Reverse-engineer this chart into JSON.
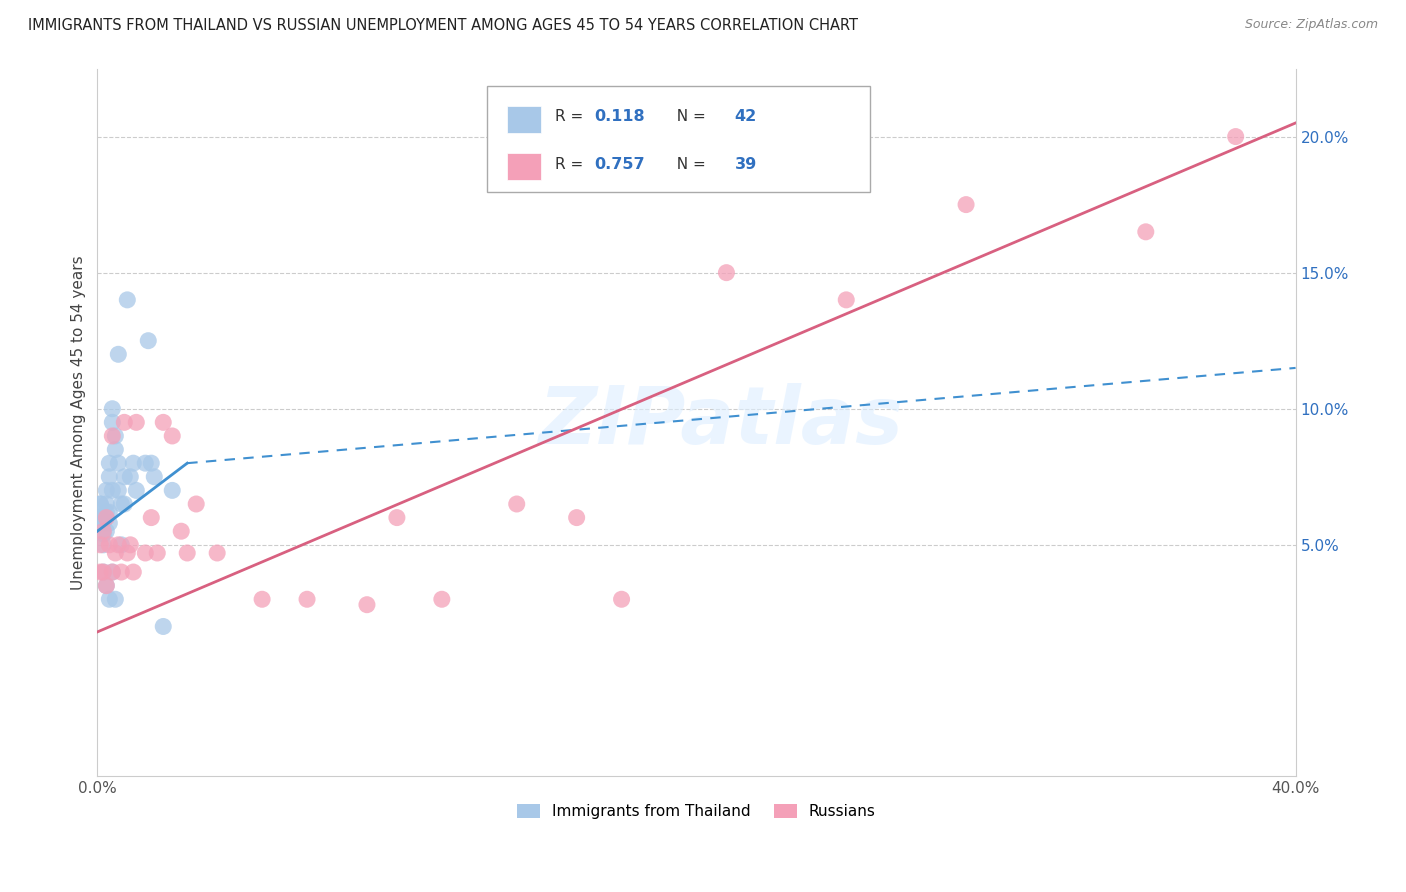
{
  "title": "IMMIGRANTS FROM THAILAND VS RUSSIAN UNEMPLOYMENT AMONG AGES 45 TO 54 YEARS CORRELATION CHART",
  "source": "Source: ZipAtlas.com",
  "ylabel": "Unemployment Among Ages 45 to 54 years",
  "legend_label1": "Immigrants from Thailand",
  "legend_label2": "Russians",
  "r1": "0.118",
  "n1": "42",
  "r2": "0.757",
  "n2": "39",
  "color_blue": "#a8c8e8",
  "color_pink": "#f4a0b8",
  "color_blue_line": "#4090d0",
  "color_pink_line": "#d86080",
  "color_blue_text": "#3070c0",
  "xlim": [
    0.0,
    0.4
  ],
  "ylim": [
    -0.035,
    0.225
  ],
  "yticks_right": [
    0.05,
    0.1,
    0.15,
    0.2
  ],
  "ytick_right_labels": [
    "5.0%",
    "10.0%",
    "15.0%",
    "20.0%"
  ],
  "watermark": "ZIPatlas",
  "thailand_x": [
    0.001,
    0.001,
    0.001,
    0.002,
    0.002,
    0.002,
    0.002,
    0.002,
    0.003,
    0.003,
    0.003,
    0.003,
    0.003,
    0.004,
    0.004,
    0.004,
    0.004,
    0.004,
    0.005,
    0.005,
    0.005,
    0.005,
    0.006,
    0.006,
    0.006,
    0.007,
    0.007,
    0.007,
    0.008,
    0.008,
    0.009,
    0.009,
    0.01,
    0.011,
    0.012,
    0.013,
    0.016,
    0.017,
    0.018,
    0.019,
    0.022,
    0.025
  ],
  "thailand_y": [
    0.065,
    0.065,
    0.06,
    0.06,
    0.058,
    0.054,
    0.05,
    0.04,
    0.07,
    0.065,
    0.062,
    0.055,
    0.035,
    0.08,
    0.075,
    0.062,
    0.058,
    0.03,
    0.1,
    0.095,
    0.07,
    0.04,
    0.09,
    0.085,
    0.03,
    0.12,
    0.08,
    0.07,
    0.065,
    0.05,
    0.075,
    0.065,
    0.14,
    0.075,
    0.08,
    0.07,
    0.08,
    0.125,
    0.08,
    0.075,
    0.02,
    0.07
  ],
  "russian_x": [
    0.001,
    0.001,
    0.002,
    0.002,
    0.003,
    0.003,
    0.004,
    0.005,
    0.005,
    0.006,
    0.007,
    0.008,
    0.009,
    0.01,
    0.011,
    0.012,
    0.013,
    0.016,
    0.018,
    0.02,
    0.022,
    0.025,
    0.028,
    0.03,
    0.033,
    0.04,
    0.055,
    0.07,
    0.09,
    0.1,
    0.115,
    0.14,
    0.16,
    0.175,
    0.21,
    0.25,
    0.29,
    0.35,
    0.38
  ],
  "russian_y": [
    0.05,
    0.04,
    0.055,
    0.04,
    0.06,
    0.035,
    0.05,
    0.09,
    0.04,
    0.047,
    0.05,
    0.04,
    0.095,
    0.047,
    0.05,
    0.04,
    0.095,
    0.047,
    0.06,
    0.047,
    0.095,
    0.09,
    0.055,
    0.047,
    0.065,
    0.047,
    0.03,
    0.03,
    0.028,
    0.06,
    0.03,
    0.065,
    0.06,
    0.03,
    0.15,
    0.14,
    0.175,
    0.165,
    0.2
  ],
  "thailand_line_x": [
    0.0,
    0.03
  ],
  "thailand_line_y": [
    0.055,
    0.08
  ],
  "thailand_dashed_line_x": [
    0.03,
    0.4
  ],
  "thailand_dashed_line_y": [
    0.08,
    0.115
  ],
  "russian_line_x": [
    0.0,
    0.4
  ],
  "russian_line_y": [
    0.018,
    0.205
  ]
}
